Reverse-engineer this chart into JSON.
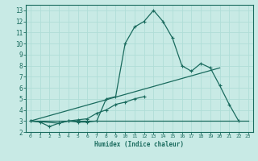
{
  "xlabel": "Humidex (Indice chaleur)",
  "xlim": [
    -0.5,
    23.5
  ],
  "ylim": [
    2,
    13.5
  ],
  "xticks": [
    0,
    1,
    2,
    3,
    4,
    5,
    6,
    7,
    8,
    9,
    10,
    11,
    12,
    13,
    14,
    15,
    16,
    17,
    18,
    19,
    20,
    21,
    22,
    23
  ],
  "yticks": [
    2,
    3,
    4,
    5,
    6,
    7,
    8,
    9,
    10,
    11,
    12,
    13
  ],
  "bg_color": "#c8eae5",
  "line_color": "#1a6b5e",
  "grid_color": "#b0ddd7",
  "line1_x": [
    0,
    1,
    2,
    3,
    4,
    5,
    6,
    7,
    8,
    9,
    10,
    11,
    12,
    13,
    14,
    15,
    16,
    17,
    18,
    19,
    20,
    21,
    22
  ],
  "line1_y": [
    3.0,
    2.9,
    2.5,
    2.8,
    3.0,
    2.9,
    2.9,
    3.0,
    5.0,
    5.2,
    10.0,
    11.5,
    12.0,
    13.0,
    12.0,
    10.5,
    8.0,
    7.5,
    8.2,
    7.8,
    6.2,
    4.5,
    3.0
  ],
  "line2_x": [
    0,
    3,
    4,
    5,
    6,
    7,
    8,
    9,
    10,
    11,
    12
  ],
  "line2_y": [
    3.0,
    2.8,
    3.0,
    3.1,
    3.2,
    3.7,
    4.0,
    4.5,
    4.7,
    5.0,
    5.2
  ],
  "line3_x": [
    0,
    23
  ],
  "line3_y": [
    3.0,
    3.0
  ],
  "line4_x": [
    0,
    20
  ],
  "line4_y": [
    3.0,
    7.8
  ]
}
